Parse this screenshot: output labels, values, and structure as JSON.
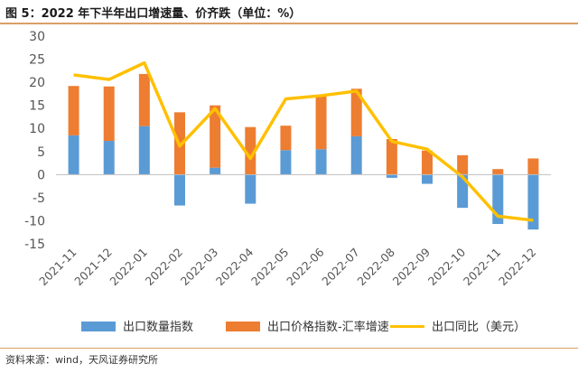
{
  "title": "图 5：2022 年下半年出口增速量、价齐跌（单位：%）",
  "source": "资料来源：wind，天风证券研究所",
  "chart_data": {
    "type": "bar",
    "stacked": true,
    "categories": [
      "2021-11",
      "2021-12",
      "2022-01",
      "2022-02",
      "2022-03",
      "2022-04",
      "2022-05",
      "2022-06",
      "2022-07",
      "2022-08",
      "2022-09",
      "2022-10",
      "2022-11",
      "2022-12"
    ],
    "series": [
      {
        "name": "出口数量指数",
        "type": "bar",
        "color": "#5b9bd5",
        "values": [
          8.5,
          7.3,
          10.5,
          -6.7,
          1.5,
          -6.3,
          5.3,
          5.5,
          8.3,
          -0.7,
          -2.0,
          -7.2,
          -10.7,
          -11.9
        ]
      },
      {
        "name": "出口价格指数-汇率增速",
        "type": "bar",
        "color": "#ed7d31",
        "values": [
          10.7,
          11.8,
          11.3,
          13.5,
          13.5,
          10.3,
          5.3,
          11.4,
          10.3,
          7.7,
          5.2,
          4.2,
          1.2,
          3.5
        ]
      },
      {
        "name": "出口同比（美元）",
        "type": "line",
        "color": "#ffc000",
        "values": [
          21.6,
          20.6,
          24.2,
          6.2,
          14.3,
          3.5,
          16.4,
          17.1,
          18.1,
          7.2,
          5.5,
          -0.5,
          -9.0,
          -9.9
        ]
      }
    ],
    "yticks": [
      30,
      25,
      20,
      15,
      10,
      5,
      0,
      -5,
      -10,
      -15
    ],
    "ylim": [
      -15,
      30
    ],
    "grid": false,
    "legend_position": "bottom"
  }
}
